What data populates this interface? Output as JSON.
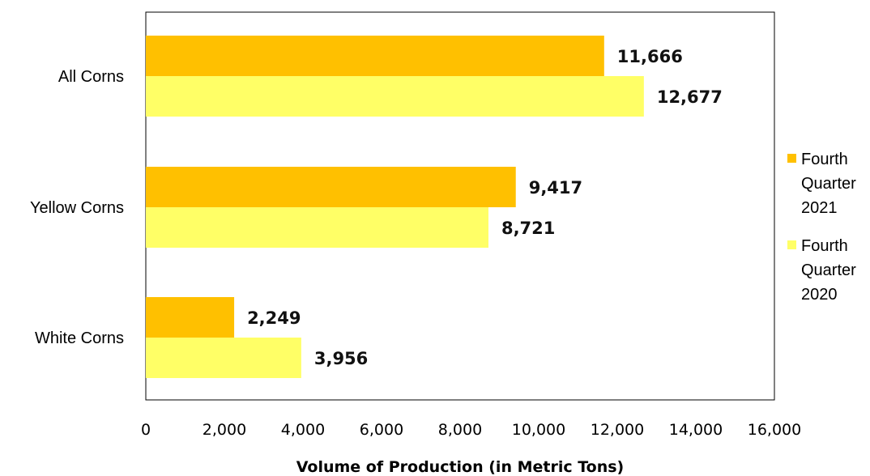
{
  "chart_data": {
    "type": "bar",
    "orientation": "horizontal",
    "categories": [
      "All Corns",
      "Yellow Corns",
      "White Corns"
    ],
    "series": [
      {
        "name": "Fourth Quarter 2021",
        "legend_lines": [
          "Fourth",
          "Quarter",
          "2021"
        ],
        "values": [
          11666,
          9417,
          2249
        ],
        "labels": [
          "11,666",
          "9,417",
          "2,249"
        ],
        "color": "#FFC000"
      },
      {
        "name": "Fourth Quarter 2020",
        "legend_lines": [
          "Fourth",
          "Quarter",
          "2020"
        ],
        "values": [
          12677,
          8721,
          3956
        ],
        "labels": [
          "12,677",
          "8,721",
          "3,956"
        ],
        "color": "#FFFF66"
      }
    ],
    "xlabel": "Volume of Production (in Metric Tons)",
    "ylabel": "",
    "xlim": [
      0,
      16000
    ],
    "xticks": [
      0,
      2000,
      4000,
      6000,
      8000,
      10000,
      12000,
      14000,
      16000
    ],
    "xtick_labels": [
      "0",
      "2,000",
      "4,000",
      "6,000",
      "8,000",
      "10,000",
      "12,000",
      "14,000",
      "16,000"
    ],
    "grid": false,
    "legend_position": "right"
  }
}
